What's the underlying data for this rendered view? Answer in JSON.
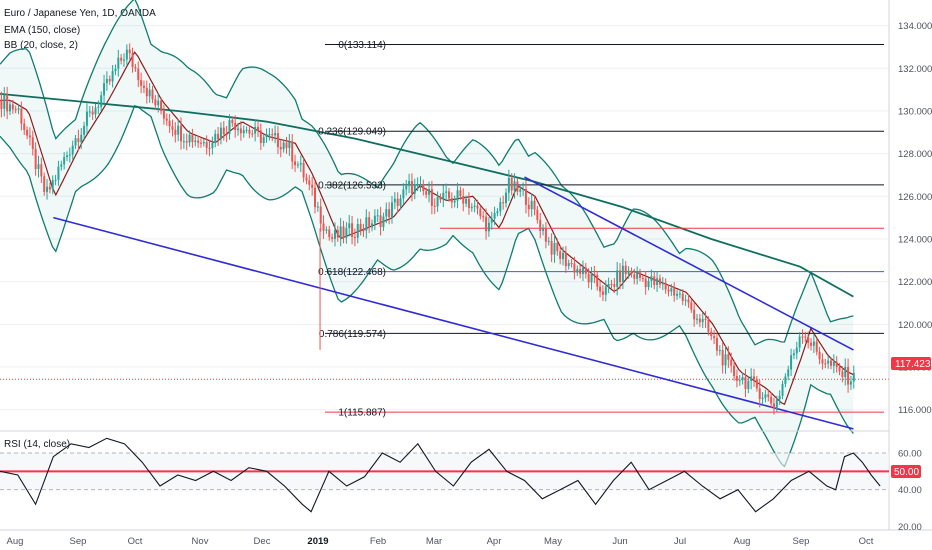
{
  "chart_data": {
    "type": "candlestick",
    "legend": {
      "title": "Euro / Japanese Yen, 1D, OANDA",
      "ema": "EMA (150, close)",
      "bb": "BB (20, close, 2)",
      "rsi": "RSI (14, close)"
    },
    "x_ticks": [
      "Aug",
      "Sep",
      "Oct",
      "Nov",
      "Dec",
      "2019",
      "Feb",
      "Mar",
      "Apr",
      "May",
      "Jun",
      "Jul",
      "Aug",
      "Sep",
      "Oct"
    ],
    "price_axis": {
      "ticks": [
        "134.000",
        "132.000",
        "130.000",
        "128.000",
        "126.000",
        "124.000",
        "122.000",
        "120.000",
        "118.000",
        "116.000"
      ],
      "ylim": [
        115.0,
        135.2
      ]
    },
    "last_price": {
      "label": "117.423",
      "value": 117.423,
      "color": "#f23645"
    },
    "fib_levels": [
      {
        "label": "0(133.114)",
        "value": 133.114,
        "color": "#131722"
      },
      {
        "label": "0.236(129.049)",
        "value": 129.049,
        "color": "#131722"
      },
      {
        "label": "0.382(126.533)",
        "value": 126.533,
        "color": "#131722"
      },
      {
        "label": "0.618(122.468)",
        "value": 122.468,
        "color": "#2962ff"
      },
      {
        "label": "0.786(119.574)",
        "value": 119.574,
        "color": "#131722"
      },
      {
        "label": "1(115.887)",
        "value": 115.887,
        "color": "#f23645"
      }
    ],
    "red_level": 124.5,
    "channel_lower": {
      "from": {
        "t": 0.06,
        "y": 125.0
      },
      "to": {
        "t": 0.96,
        "y": 115.1
      }
    },
    "channel_upper": {
      "from": {
        "t": 0.59,
        "y": 126.9
      },
      "to": {
        "t": 0.96,
        "y": 118.8
      }
    },
    "ema_path": [
      [
        0.0,
        130.8
      ],
      [
        0.1,
        130.4
      ],
      [
        0.2,
        130.0
      ],
      [
        0.3,
        129.5
      ],
      [
        0.4,
        128.7
      ],
      [
        0.5,
        127.7
      ],
      [
        0.6,
        126.7
      ],
      [
        0.7,
        125.5
      ],
      [
        0.8,
        124.0
      ],
      [
        0.9,
        122.7
      ],
      [
        0.96,
        121.3
      ]
    ],
    "price_path": [
      [
        0.0,
        130.5
      ],
      [
        0.02,
        130.0
      ],
      [
        0.05,
        126.0
      ],
      [
        0.08,
        128.5
      ],
      [
        0.11,
        130.5
      ],
      [
        0.14,
        132.8
      ],
      [
        0.17,
        130.5
      ],
      [
        0.2,
        129.0
      ],
      [
        0.23,
        128.5
      ],
      [
        0.26,
        129.5
      ],
      [
        0.29,
        128.8
      ],
      [
        0.32,
        128.5
      ],
      [
        0.34,
        127.0
      ],
      [
        0.36,
        125.0
      ],
      [
        0.37,
        124.0
      ],
      [
        0.4,
        124.5
      ],
      [
        0.43,
        125.0
      ],
      [
        0.46,
        126.5
      ],
      [
        0.49,
        125.8
      ],
      [
        0.52,
        126.0
      ],
      [
        0.55,
        124.5
      ],
      [
        0.57,
        126.5
      ],
      [
        0.59,
        126.0
      ],
      [
        0.62,
        123.5
      ],
      [
        0.65,
        122.5
      ],
      [
        0.68,
        121.5
      ],
      [
        0.7,
        122.5
      ],
      [
        0.73,
        122.0
      ],
      [
        0.76,
        121.5
      ],
      [
        0.79,
        120.0
      ],
      [
        0.82,
        117.8
      ],
      [
        0.85,
        117.0
      ],
      [
        0.87,
        116.2
      ],
      [
        0.89,
        118.5
      ],
      [
        0.9,
        119.8
      ],
      [
        0.92,
        118.5
      ],
      [
        0.94,
        117.8
      ],
      [
        0.96,
        117.4
      ]
    ],
    "bb_width": 2.6,
    "rsi": {
      "ticks": [
        "60.00",
        "40.00",
        "20.00"
      ],
      "ylim": [
        18,
        72
      ],
      "current_label": "50.00",
      "current_value": 50,
      "path": [
        [
          0.0,
          50
        ],
        [
          0.02,
          48
        ],
        [
          0.04,
          32
        ],
        [
          0.06,
          58
        ],
        [
          0.08,
          65
        ],
        [
          0.1,
          63
        ],
        [
          0.12,
          68
        ],
        [
          0.14,
          65
        ],
        [
          0.16,
          55
        ],
        [
          0.18,
          42
        ],
        [
          0.2,
          48
        ],
        [
          0.22,
          45
        ],
        [
          0.24,
          50
        ],
        [
          0.26,
          45
        ],
        [
          0.28,
          52
        ],
        [
          0.3,
          50
        ],
        [
          0.32,
          42
        ],
        [
          0.34,
          32
        ],
        [
          0.35,
          28
        ],
        [
          0.37,
          50
        ],
        [
          0.39,
          42
        ],
        [
          0.41,
          47
        ],
        [
          0.43,
          60
        ],
        [
          0.45,
          55
        ],
        [
          0.47,
          65
        ],
        [
          0.49,
          50
        ],
        [
          0.51,
          42
        ],
        [
          0.53,
          55
        ],
        [
          0.55,
          62
        ],
        [
          0.57,
          50
        ],
        [
          0.59,
          45
        ],
        [
          0.61,
          35
        ],
        [
          0.63,
          40
        ],
        [
          0.65,
          45
        ],
        [
          0.67,
          32
        ],
        [
          0.69,
          45
        ],
        [
          0.71,
          55
        ],
        [
          0.73,
          40
        ],
        [
          0.75,
          45
        ],
        [
          0.77,
          50
        ],
        [
          0.79,
          42
        ],
        [
          0.81,
          35
        ],
        [
          0.83,
          40
        ],
        [
          0.85,
          28
        ],
        [
          0.87,
          35
        ],
        [
          0.89,
          45
        ],
        [
          0.91,
          50
        ],
        [
          0.93,
          42
        ],
        [
          0.94,
          40
        ],
        [
          0.95,
          58
        ],
        [
          0.96,
          60
        ],
        [
          0.97,
          55
        ],
        [
          0.98,
          48
        ],
        [
          0.99,
          42
        ]
      ]
    },
    "colors": {
      "bull": "#26a69a",
      "bear": "#ef5350",
      "ema": "#0f6e5f",
      "bb_band": "#0f7c6e",
      "bb_basis": "#8b1c1c",
      "channel": "#2f2bd6",
      "red": "#f23645",
      "rsi": "#131722"
    }
  }
}
